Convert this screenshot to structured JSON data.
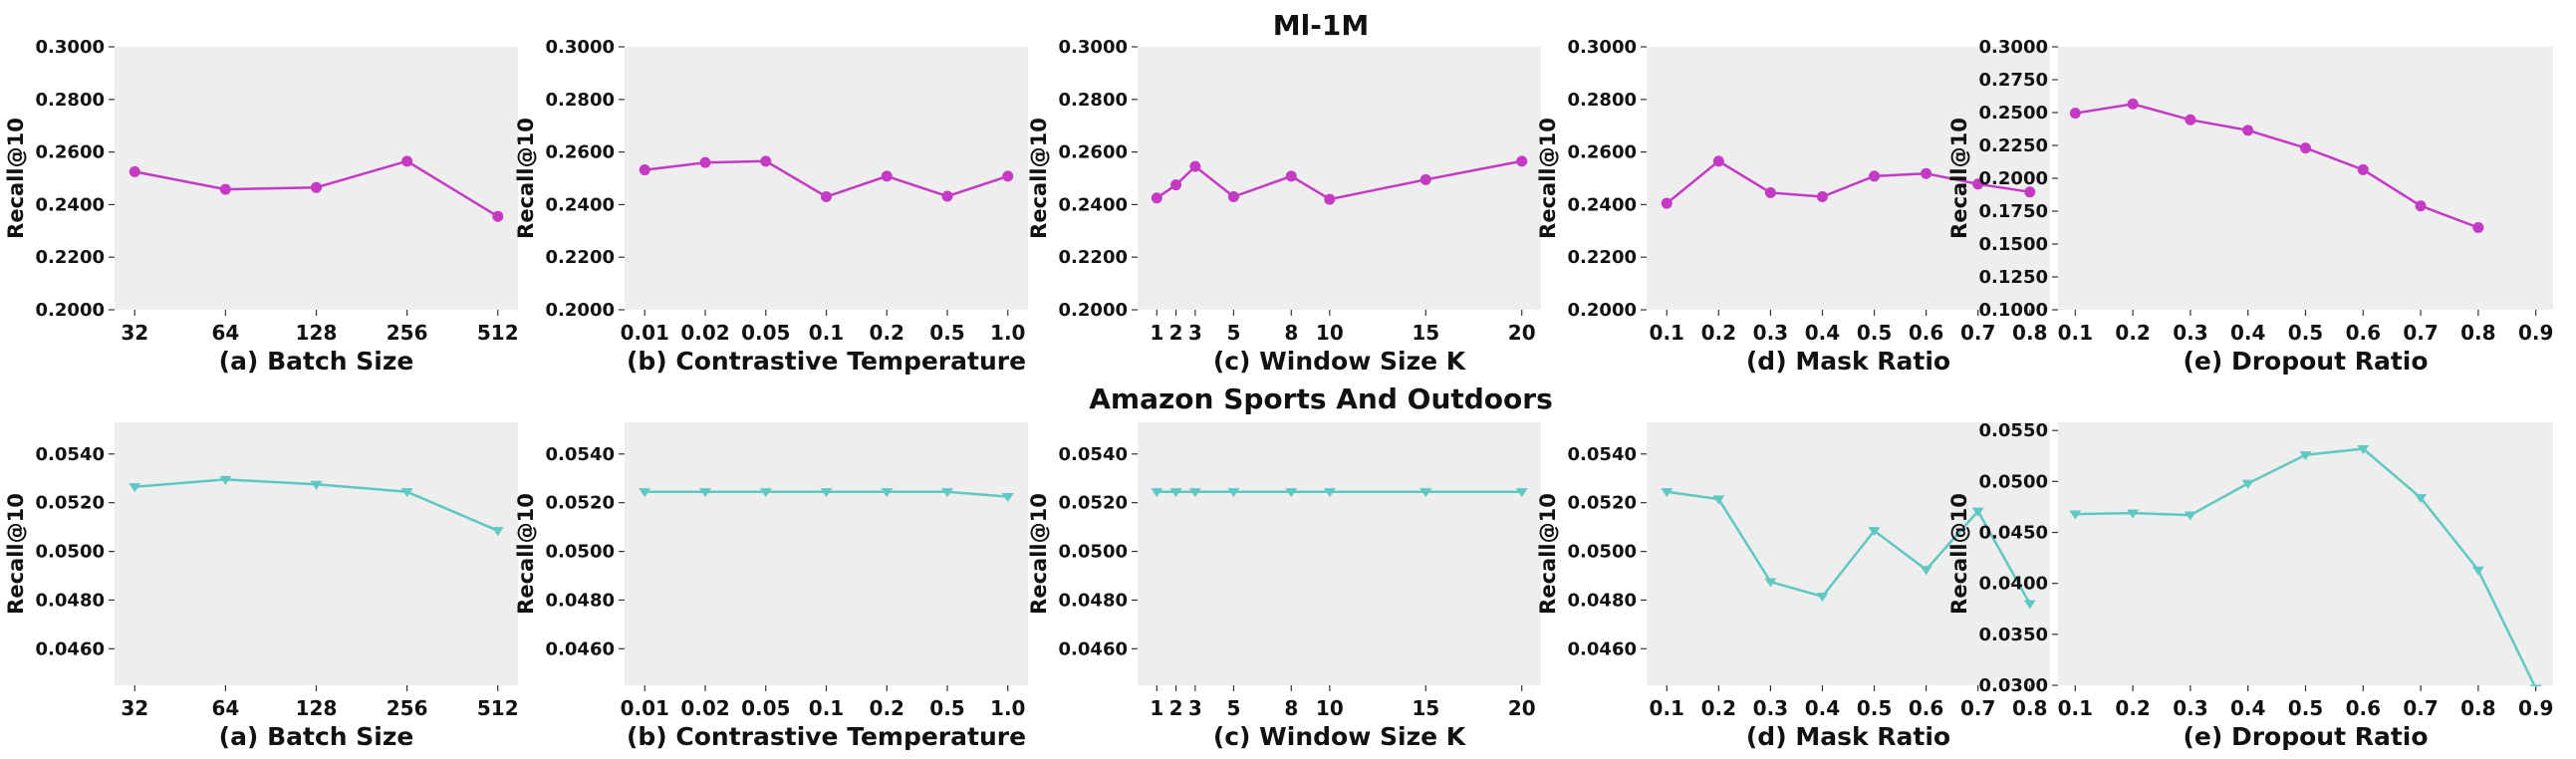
{
  "figure": {
    "row_titles": [
      "Ml-1M",
      "Amazon Sports And Outdoors"
    ]
  },
  "colors": {
    "ml1m_line": "#C43AC4",
    "sports_line": "#5FC8C2",
    "panel_bg": "#EEEEEE",
    "text": "#111111"
  },
  "chart_data": [
    {
      "type": "line",
      "row": 0,
      "col": 0,
      "xlabel": "(a) Batch Size",
      "ylabel": "Recall@10",
      "x_scale": "categorical",
      "x": [
        "32",
        "64",
        "128",
        "256",
        "512"
      ],
      "series": [
        {
          "values": [
            0.2525,
            0.2458,
            0.2465,
            0.2565,
            0.2355
          ]
        }
      ],
      "ylim": [
        0.2,
        0.3
      ],
      "yticks": [
        "0.2000",
        "0.2200",
        "0.2400",
        "0.2600",
        "0.2800",
        "0.3000"
      ],
      "marker": "circle",
      "grid": false
    },
    {
      "type": "line",
      "row": 0,
      "col": 1,
      "xlabel": "(b) Contrastive Temperature",
      "ylabel": "Recall@10",
      "x_scale": "categorical",
      "x": [
        "0.01",
        "0.02",
        "0.05",
        "0.1",
        "0.2",
        "0.5",
        "1.0"
      ],
      "series": [
        {
          "values": [
            0.2532,
            0.256,
            0.2565,
            0.243,
            0.2508,
            0.2432,
            0.2508
          ]
        }
      ],
      "ylim": [
        0.2,
        0.3
      ],
      "yticks": [
        "0.2000",
        "0.2200",
        "0.2400",
        "0.2600",
        "0.2800",
        "0.3000"
      ],
      "marker": "circle",
      "grid": false
    },
    {
      "type": "line",
      "row": 0,
      "col": 2,
      "xlabel": "(c) Window Size K",
      "ylabel": "Recall@10",
      "x_scale": "linear",
      "xlim": [
        0,
        21
      ],
      "xticks": [
        1,
        2,
        3,
        5,
        8,
        10,
        15,
        20
      ],
      "x": [
        1,
        2,
        3,
        5,
        8,
        10,
        15,
        20
      ],
      "series": [
        {
          "values": [
            0.2425,
            0.2475,
            0.2545,
            0.243,
            0.2508,
            0.242,
            0.2495,
            0.2565
          ]
        }
      ],
      "ylim": [
        0.2,
        0.3
      ],
      "yticks": [
        "0.2000",
        "0.2200",
        "0.2400",
        "0.2600",
        "0.2800",
        "0.3000"
      ],
      "marker": "circle",
      "grid": false
    },
    {
      "type": "line",
      "row": 0,
      "col": 3,
      "xlabel": "(d) Mask Ratio",
      "ylabel": "Recall@10",
      "x_scale": "categorical",
      "x": [
        "0.1",
        "0.2",
        "0.3",
        "0.4",
        "0.5",
        "0.6",
        "0.7",
        "0.8"
      ],
      "series": [
        {
          "values": [
            0.2405,
            0.2565,
            0.2445,
            0.243,
            0.2508,
            0.2518,
            0.2478,
            0.2448
          ]
        }
      ],
      "ylim": [
        0.2,
        0.3
      ],
      "yticks": [
        "0.2000",
        "0.2200",
        "0.2400",
        "0.2600",
        "0.2800",
        "0.3000"
      ],
      "marker": "circle",
      "grid": false
    },
    {
      "type": "line",
      "row": 0,
      "col": 4,
      "xlabel": "(e) Dropout Ratio",
      "ylabel": "Recall@10",
      "x_scale": "linear",
      "xlim": [
        0.07,
        0.93
      ],
      "xticks": [
        0.1,
        0.2,
        0.3,
        0.4,
        0.5,
        0.6,
        0.7,
        0.8,
        0.9
      ],
      "xtick_labels": [
        "0.1",
        "0.2",
        "0.3",
        "0.4",
        "0.5",
        "0.6",
        "0.7",
        "0.8",
        "0.9"
      ],
      "x": [
        0.1,
        0.2,
        0.3,
        0.4,
        0.5,
        0.6,
        0.7,
        0.8
      ],
      "series": [
        {
          "values": [
            0.2495,
            0.2565,
            0.2445,
            0.2365,
            0.223,
            0.2065,
            0.179,
            0.1625
          ]
        }
      ],
      "ylim": [
        0.1,
        0.3
      ],
      "yticks": [
        "0.1000",
        "0.1250",
        "0.1500",
        "0.1750",
        "0.2000",
        "0.2250",
        "0.2500",
        "0.2750",
        "0.3000"
      ],
      "marker": "circle",
      "grid": false
    },
    {
      "type": "line",
      "row": 1,
      "col": 0,
      "xlabel": "(a) Batch Size",
      "ylabel": "Recall@10",
      "x_scale": "categorical",
      "x": [
        "32",
        "64",
        "128",
        "256",
        "512"
      ],
      "series": [
        {
          "values": [
            0.05265,
            0.05295,
            0.05275,
            0.05245,
            0.05085
          ]
        }
      ],
      "ylim": [
        0.0445,
        0.0553
      ],
      "yticks": [
        "0.0460",
        "0.0480",
        "0.0500",
        "0.0520",
        "0.0540"
      ],
      "marker": "triangle-down",
      "grid": false
    },
    {
      "type": "line",
      "row": 1,
      "col": 1,
      "xlabel": "(b) Contrastive Temperature",
      "ylabel": "Recall@10",
      "x_scale": "categorical",
      "x": [
        "0.01",
        "0.02",
        "0.05",
        "0.1",
        "0.2",
        "0.5",
        "1.0"
      ],
      "series": [
        {
          "values": [
            0.05245,
            0.05245,
            0.05245,
            0.05245,
            0.05245,
            0.05245,
            0.05225
          ]
        }
      ],
      "ylim": [
        0.0445,
        0.0553
      ],
      "yticks": [
        "0.0460",
        "0.0480",
        "0.0500",
        "0.0520",
        "0.0540"
      ],
      "marker": "triangle-down",
      "grid": false
    },
    {
      "type": "line",
      "row": 1,
      "col": 2,
      "xlabel": "(c) Window Size K",
      "ylabel": "Recall@10",
      "x_scale": "linear",
      "xlim": [
        0,
        21
      ],
      "xticks": [
        1,
        2,
        3,
        5,
        8,
        10,
        15,
        20
      ],
      "x": [
        1,
        2,
        3,
        5,
        8,
        10,
        15,
        20
      ],
      "series": [
        {
          "values": [
            0.05245,
            0.05245,
            0.05245,
            0.05245,
            0.05245,
            0.05245,
            0.05245,
            0.05245
          ]
        }
      ],
      "ylim": [
        0.0445,
        0.0553
      ],
      "yticks": [
        "0.0460",
        "0.0480",
        "0.0500",
        "0.0520",
        "0.0540"
      ],
      "marker": "triangle-down",
      "grid": false
    },
    {
      "type": "line",
      "row": 1,
      "col": 3,
      "xlabel": "(d) Mask Ratio",
      "ylabel": "Recall@10",
      "x_scale": "categorical",
      "x": [
        "0.1",
        "0.2",
        "0.3",
        "0.4",
        "0.5",
        "0.6",
        "0.7",
        "0.8"
      ],
      "series": [
        {
          "values": [
            0.05245,
            0.05215,
            0.04875,
            0.04815,
            0.05085,
            0.04925,
            0.05165,
            0.04785
          ]
        }
      ],
      "ylim": [
        0.0445,
        0.0553
      ],
      "yticks": [
        "0.0460",
        "0.0480",
        "0.0500",
        "0.0520",
        "0.0540"
      ],
      "marker": "triangle-down",
      "grid": false
    },
    {
      "type": "line",
      "row": 1,
      "col": 4,
      "xlabel": "(e) Dropout Ratio",
      "ylabel": "Recall@10",
      "x_scale": "linear",
      "xlim": [
        0.07,
        0.93
      ],
      "xticks": [
        0.1,
        0.2,
        0.3,
        0.4,
        0.5,
        0.6,
        0.7,
        0.8,
        0.9
      ],
      "xtick_labels": [
        "0.1",
        "0.2",
        "0.3",
        "0.4",
        "0.5",
        "0.6",
        "0.7",
        "0.8",
        "0.9"
      ],
      "x": [
        0.1,
        0.2,
        0.3,
        0.4,
        0.5,
        0.6,
        0.7,
        0.8,
        0.9
      ],
      "series": [
        {
          "values": [
            0.0468,
            0.0469,
            0.0467,
            0.0498,
            0.0526,
            0.0532,
            0.0484,
            0.0413,
            0.0297
          ]
        }
      ],
      "ylim": [
        0.03,
        0.0558
      ],
      "yticks": [
        "0.0300",
        "0.0350",
        "0.0400",
        "0.0450",
        "0.0500",
        "0.0550"
      ],
      "marker": "triangle-down",
      "grid": false
    }
  ]
}
